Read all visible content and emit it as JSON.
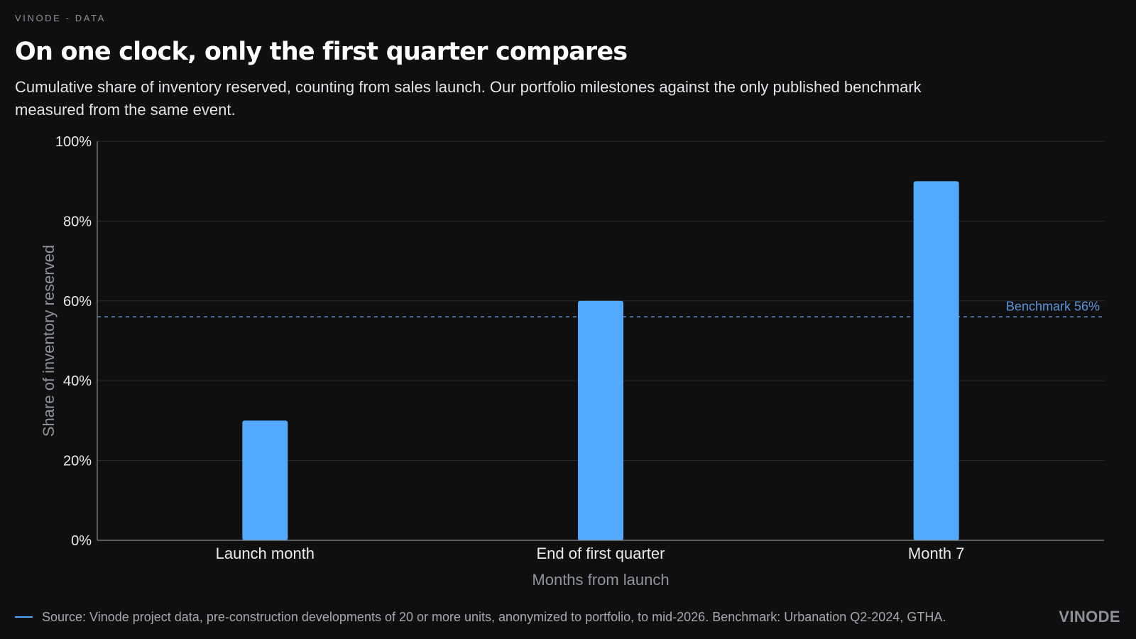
{
  "header": {
    "kicker": "VINODE - DATA",
    "title": "On one clock, only the first quarter compares",
    "subtitle": "Cumulative share of inventory reserved, counting from sales launch. Our portfolio milestones against the only published benchmark measured from the same event."
  },
  "chart_data": {
    "type": "bar",
    "categories": [
      "Launch month",
      "End of first quarter",
      "Month 7"
    ],
    "values": [
      30,
      60,
      90
    ],
    "xlabel": "Months from launch",
    "ylabel": "Share of inventory reserved",
    "ylim": [
      0,
      100
    ],
    "yticks": [
      0,
      20,
      40,
      60,
      80,
      100
    ],
    "ytick_labels": [
      "0%",
      "20%",
      "40%",
      "60%",
      "80%",
      "100%"
    ],
    "grid": true,
    "benchmark": {
      "value": 56,
      "label": "Benchmark 56%"
    },
    "colors": {
      "bars": "#53a9ff",
      "benchmark": "#5b95d9",
      "grid": "#2b2c2f",
      "axis": "#8b8e92",
      "text": "#e9eaec",
      "axis_title": "#8f949a"
    }
  },
  "footer": {
    "source": "Source: Vinode project data, pre-construction developments of 20 or more units, anonymized to portfolio, to mid-2026. Benchmark: Urbanation Q2-2024, GTHA.",
    "logo": "VINODE"
  }
}
